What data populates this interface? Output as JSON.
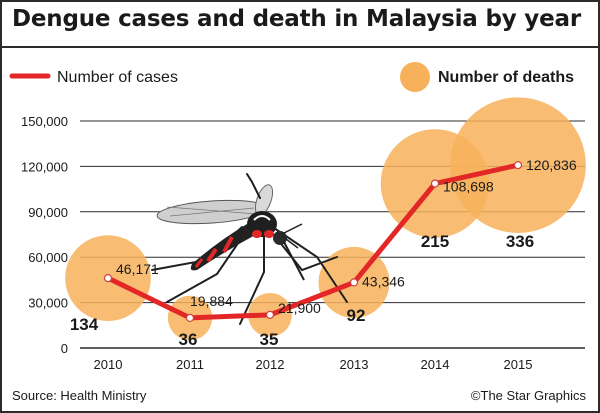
{
  "title": "Dengue cases and death in Malaysia by year",
  "source": "Source: Health Ministry",
  "credit": "©The Star Graphics",
  "colors": {
    "line": "#e32626",
    "bubble": "#f7b15a",
    "text": "#1a1a1a",
    "grid": "#2b2b2b"
  },
  "illustration": "mosquito",
  "chart_data": {
    "type": "line",
    "categories": [
      "2010",
      "2011",
      "2012",
      "2013",
      "2014",
      "2015"
    ],
    "series": [
      {
        "name": "Number of cases",
        "type": "line",
        "values": [
          46171,
          19884,
          21900,
          43346,
          108698,
          120836
        ],
        "labels": [
          "46,171",
          "19,884",
          "21,900",
          "43,346",
          "108,698",
          "120,836"
        ]
      },
      {
        "name": "Number of deaths",
        "type": "bubble",
        "values": [
          134,
          36,
          35,
          92,
          215,
          336
        ],
        "labels": [
          "134",
          "36",
          "35",
          "92",
          "215",
          "336"
        ]
      }
    ],
    "yticks": [
      "0",
      "30,000",
      "60,000",
      "90,000",
      "120,000",
      "150,000"
    ],
    "ylim": [
      0,
      150000
    ],
    "grid": true,
    "legend": "top"
  }
}
